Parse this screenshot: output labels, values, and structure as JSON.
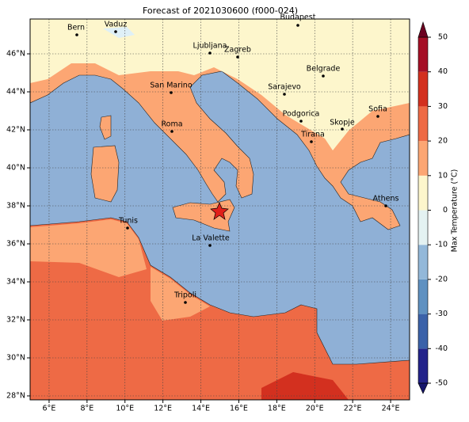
{
  "title": "Forecast of 2021030600 (f000-024)",
  "x_ticks": [
    {
      "value": 6,
      "label": "6°E"
    },
    {
      "value": 8,
      "label": "8°E"
    },
    {
      "value": 10,
      "label": "10°E"
    },
    {
      "value": 12,
      "label": "12°E"
    },
    {
      "value": 14,
      "label": "14°E"
    },
    {
      "value": 16,
      "label": "16°E"
    },
    {
      "value": 18,
      "label": "18°E"
    },
    {
      "value": 20,
      "label": "20°E"
    },
    {
      "value": 22,
      "label": "22°E"
    },
    {
      "value": 24,
      "label": "24°E"
    }
  ],
  "y_ticks": [
    {
      "value": 46,
      "label": "46°N"
    },
    {
      "value": 44,
      "label": "44°N"
    },
    {
      "value": 42,
      "label": "42°N"
    },
    {
      "value": 40,
      "label": "40°N"
    },
    {
      "value": 38,
      "label": "38°N"
    },
    {
      "value": 36,
      "label": "36°N"
    },
    {
      "value": 34,
      "label": "34°N"
    },
    {
      "value": 32,
      "label": "32°N"
    },
    {
      "value": 30,
      "label": "30°N"
    },
    {
      "value": 28,
      "label": "28°N"
    }
  ],
  "cities": [
    "Bern",
    "Vaduz",
    "Budapest",
    "Ljubljana",
    "Zagreb",
    "Belgrade",
    "San Marino",
    "Sarajevo",
    "Sofia",
    "Podgorica",
    "Skopje",
    "Roma",
    "Tirana",
    "Athens",
    "Tunis",
    "La Valette",
    "Tripoli"
  ],
  "colorbar": {
    "label": "Max Temperature (°C)",
    "ticks": [
      -50,
      -40,
      -30,
      -20,
      -10,
      0,
      10,
      20,
      30,
      40,
      50
    ],
    "colors": [
      "#23238a",
      "#3b62a9",
      "#5f91c1",
      "#93b8d9",
      "#e4f2f2",
      "#fdf6cc",
      "#fca673",
      "#ee6a45",
      "#d3301f",
      "#a50f26"
    ],
    "under_color": "#15156b",
    "over_color": "#6b0020"
  }
}
